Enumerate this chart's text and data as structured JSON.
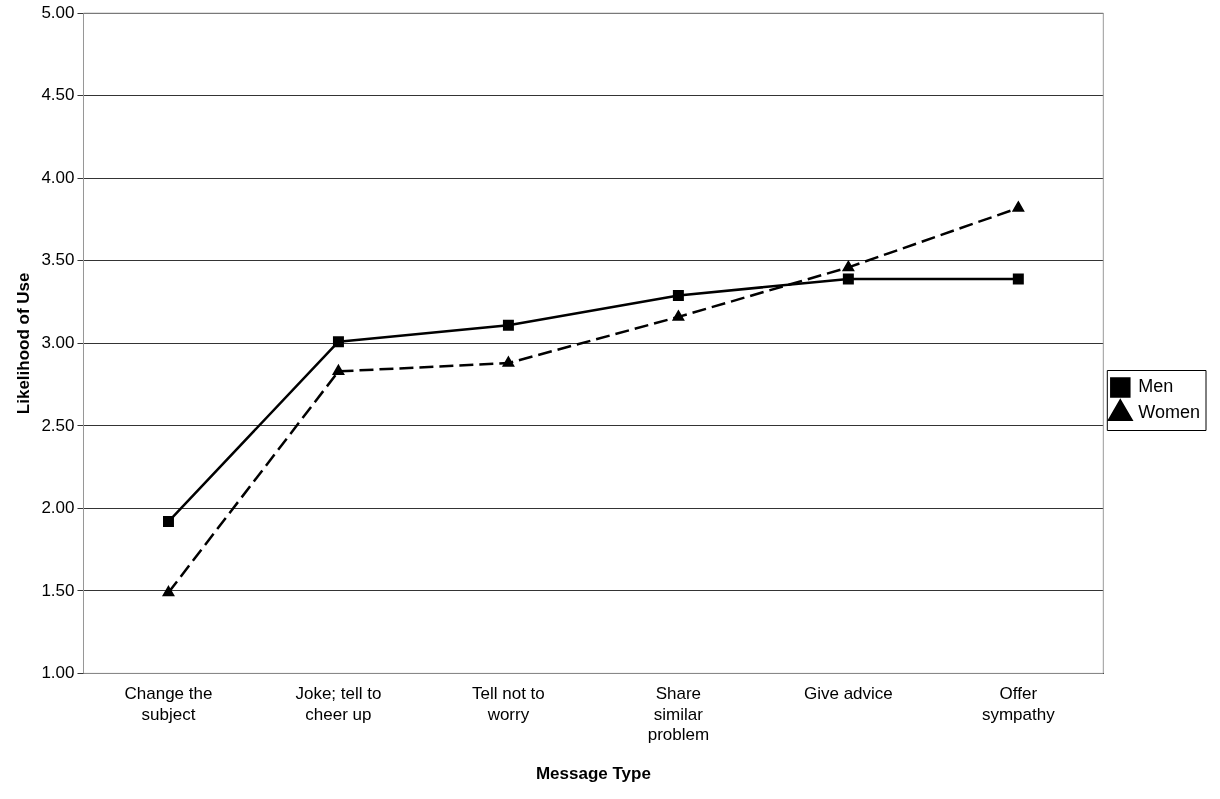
{
  "chart_data": {
    "type": "line",
    "xlabel": "Message Type",
    "ylabel": "Likelihood of Use",
    "categories": [
      "Change the\nsubject",
      "Joke; tell to\ncheer up",
      "Tell not to\nworry",
      "Share\nsimilar\nproblem",
      "Give advice",
      "Offer\nsympathy"
    ],
    "series": [
      {
        "name": "Men",
        "color": "#000000",
        "marker": "square",
        "line_style": "solid",
        "values": [
          1.92,
          3.01,
          3.11,
          3.29,
          3.39,
          3.39
        ]
      },
      {
        "name": "Women",
        "color": "#000000",
        "marker": "triangle",
        "line_style": "dashed",
        "values": [
          1.49,
          2.83,
          2.88,
          3.16,
          3.46,
          3.82
        ]
      }
    ],
    "ylim": [
      1,
      5
    ],
    "yticks": [
      {
        "value": 1,
        "label": "1.00"
      },
      {
        "value": 1.5,
        "label": "1.50"
      },
      {
        "value": 2,
        "label": "2.00"
      },
      {
        "value": 2.5,
        "label": "2.50"
      },
      {
        "value": 3,
        "label": "3.00"
      },
      {
        "value": 3.5,
        "label": "3.50"
      },
      {
        "value": 4,
        "label": "4.00"
      },
      {
        "value": 4.5,
        "label": "4.50"
      },
      {
        "value": 5,
        "label": "5.00"
      }
    ],
    "grid": "y",
    "legend": "right"
  }
}
